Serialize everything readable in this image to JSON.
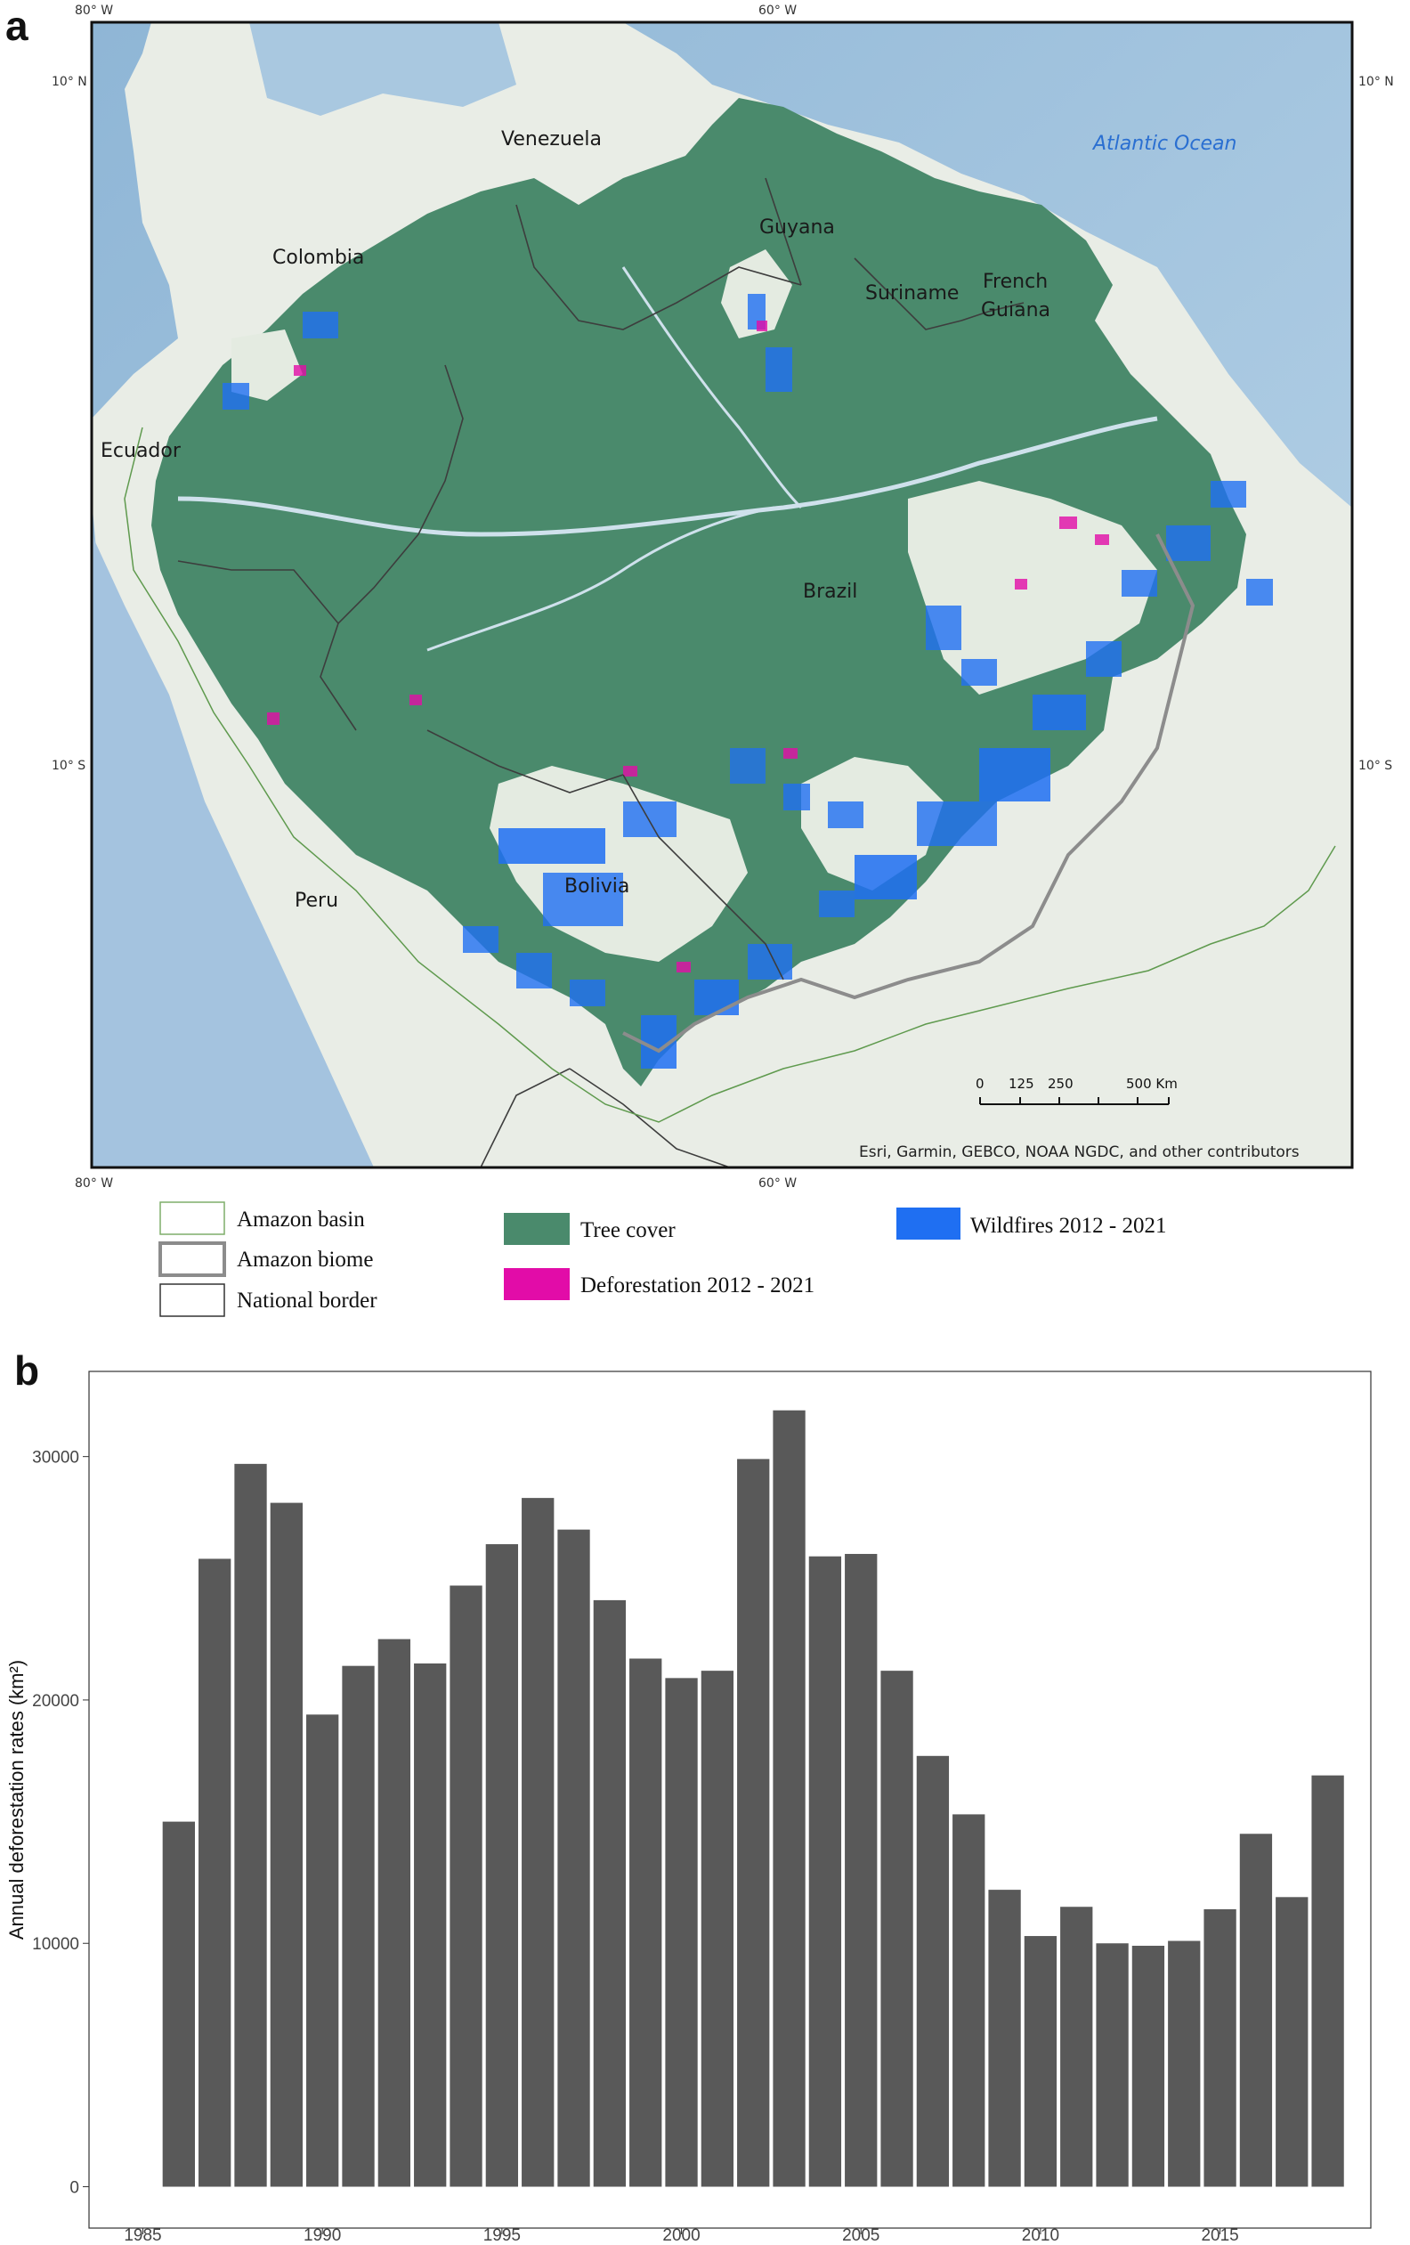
{
  "panel_a": {
    "letter": "a",
    "coords": {
      "top_left": "80° W",
      "top_mid": "60° W",
      "bottom_left": "80° W",
      "bottom_mid": "60° W",
      "left_n": "10° N",
      "left_s": "10° S",
      "right_n": "10° N",
      "right_s": "10° S"
    },
    "labels": {
      "venezuela": "Venezuela",
      "colombia": "Colombia",
      "guyana": "Guyana",
      "suriname": "Suriname",
      "french_guiana_1": "French",
      "french_guiana_2": "Guiana",
      "ecuador": "Ecuador",
      "brazil": "Brazil",
      "peru": "Peru",
      "bolivia": "Bolivia",
      "ocean": "Atlantic Ocean"
    },
    "scale": {
      "t0": "0",
      "t1": "125",
      "t2": "250",
      "t3": "500 Km"
    },
    "credit": "Esri, Garmin, GEBCO, NOAA NGDC, and other contributors",
    "legend": {
      "amazon_basin": "Amazon basin",
      "amazon_biome": "Amazon biome",
      "national_border": "National border",
      "tree_cover": "Tree cover",
      "deforestation": "Deforestation 2012 - 2021",
      "wildfires": "Wildfires 2012 - 2021"
    },
    "colors": {
      "tree_cover": "#4a8a6c",
      "deforestation": "#e20ca8",
      "wildfires": "#1f6ff2",
      "ocean": "#a9c8e0",
      "land": "#e9ede6"
    }
  },
  "panel_b": {
    "letter": "b"
  },
  "chart_data": {
    "type": "bar",
    "title": "",
    "xlabel": "",
    "ylabel": "Annual deforestation rates (km²)",
    "x": [
      1986,
      1987,
      1988,
      1989,
      1990,
      1991,
      1992,
      1993,
      1994,
      1995,
      1996,
      1997,
      1998,
      1999,
      2000,
      2001,
      2002,
      2003,
      2004,
      2005,
      2006,
      2007,
      2008,
      2009,
      2010,
      2011,
      2012,
      2013,
      2014,
      2015,
      2016,
      2017,
      2018
    ],
    "values": [
      15000,
      25800,
      29700,
      28100,
      19400,
      21400,
      22500,
      21500,
      24700,
      26400,
      28300,
      27000,
      24100,
      21700,
      20900,
      21200,
      29900,
      31900,
      25900,
      26000,
      21200,
      17700,
      15300,
      12200,
      10300,
      11500,
      10000,
      9900,
      10100,
      11400,
      14500,
      11900,
      16900
    ],
    "xlim": [
      1983.5,
      2019.2
    ],
    "ylim": [
      -1700,
      33500
    ],
    "xticks": [
      1985,
      1990,
      1995,
      2000,
      2005,
      2010,
      2015
    ],
    "yticks": [
      0,
      10000,
      20000,
      30000
    ],
    "bar_color": "#595959",
    "grid": false
  }
}
